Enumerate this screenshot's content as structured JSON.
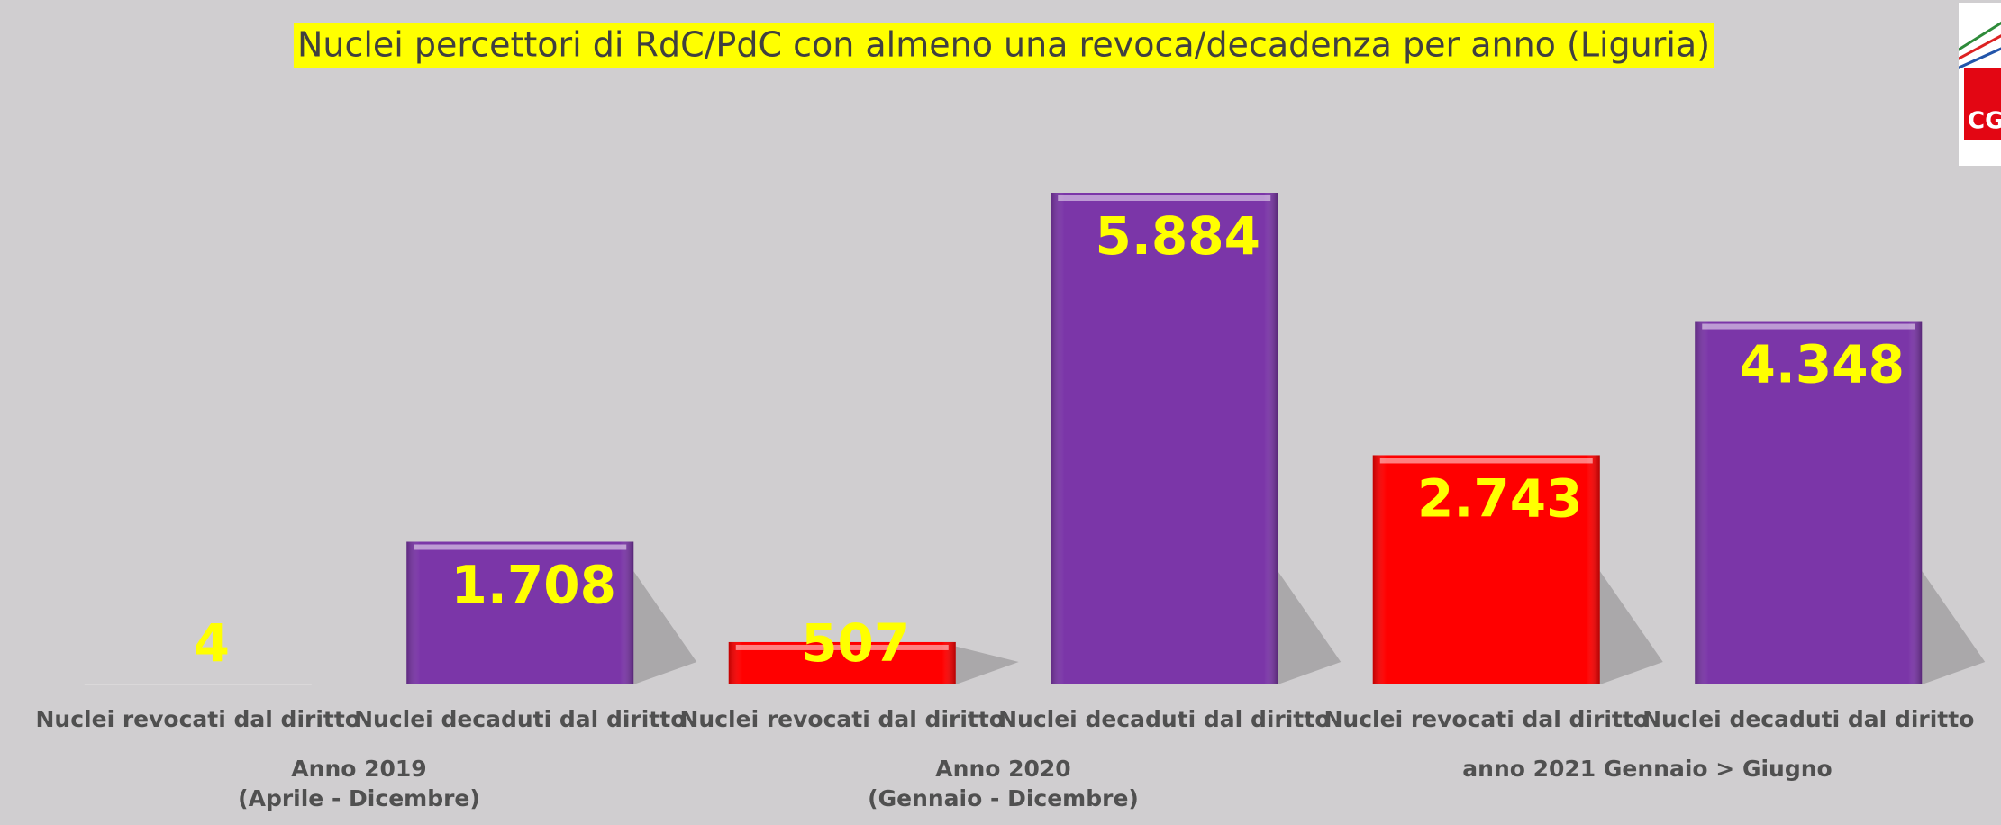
{
  "chart_data": {
    "type": "bar",
    "title": "Nuclei percettori di RdC/PdC con almeno una revoca/decadenza per anno (Liguria)",
    "categories": [
      "Nuclei revocati dal diritto",
      "Nuclei decaduti dal diritto",
      "Nuclei revocati dal diritto",
      "Nuclei decaduti dal diritto",
      "Nuclei revocati dal diritto",
      "Nuclei decaduti dal diritto"
    ],
    "values": [
      4,
      1708,
      507,
      5884,
      2743,
      4348
    ],
    "value_labels": [
      "4",
      "1.708",
      "507",
      "5.884",
      "2.743",
      "4.348"
    ],
    "colors": [
      "#ff0000",
      "#7b36a8",
      "#ff0000",
      "#7b36a8",
      "#ff0000",
      "#7b36a8"
    ],
    "groups": [
      [
        "Anno 2019",
        "(Aprile - Dicembre)"
      ],
      [
        "Anno 2020",
        "(Gennaio - Dicembre)"
      ],
      [
        "anno 2021 Gennaio > Giugno"
      ]
    ],
    "logo": "CGIL"
  }
}
